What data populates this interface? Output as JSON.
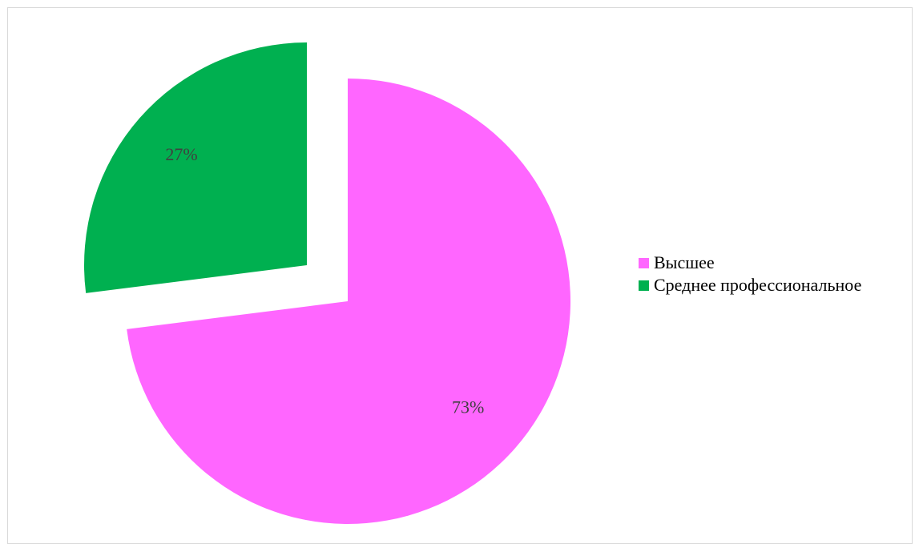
{
  "chart_data": {
    "type": "pie",
    "title": "",
    "slices": [
      {
        "label": "Высшее",
        "value": 73,
        "display": "73%",
        "color": "#FF66FF",
        "exploded": false
      },
      {
        "label": "Среднее профессиональное",
        "value": 27,
        "display": "27%",
        "color": "#00B050",
        "exploded": true
      }
    ],
    "legend_position": "right"
  }
}
